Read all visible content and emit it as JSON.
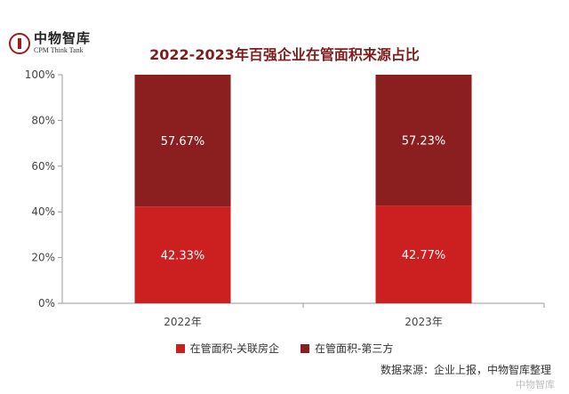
{
  "logo": {
    "name_cn": "中物智库",
    "name_en": "CPM Think Tank"
  },
  "chart_data": {
    "type": "bar",
    "stacked": true,
    "title": "2022-2023年百强企业在管面积来源占比",
    "categories": [
      "2022年",
      "2023年"
    ],
    "series": [
      {
        "name": "在管面积-关联房企",
        "values": [
          42.33,
          42.77
        ],
        "labels": [
          "42.33%",
          "42.77%"
        ],
        "color": "#cc1f1f"
      },
      {
        "name": "在管面积-第三方",
        "values": [
          57.67,
          57.23
        ],
        "labels": [
          "57.67%",
          "57.23%"
        ],
        "color": "#8b1e1e"
      }
    ],
    "ylim": [
      0,
      100
    ],
    "yticks": [
      "0%",
      "20%",
      "40%",
      "60%",
      "80%",
      "100%"
    ],
    "grid": false,
    "legend_position": "bottom"
  },
  "source": "数据来源：企业上报，中物智库整理",
  "watermark": "中物智库"
}
